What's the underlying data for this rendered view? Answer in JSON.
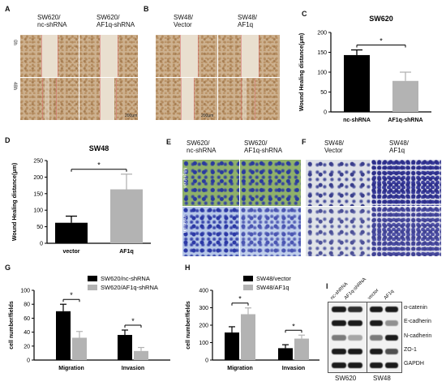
{
  "panels": {
    "A": {
      "label": "A",
      "columns": [
        "SW620/\nnc-shRNA",
        "SW620/\nAF1q-shRNA"
      ],
      "rows": [
        "0h",
        "48h"
      ],
      "scale": "200μm"
    },
    "B": {
      "label": "B",
      "columns": [
        "SW48/\nVector",
        "SW48/\nAF1q"
      ],
      "scale": "200μm"
    },
    "E": {
      "label": "E",
      "columns": [
        "SW620/\nnc-shRNA",
        "SW620/\nAF1q-shRNA"
      ],
      "rows": [
        "Migration",
        "Invasion"
      ]
    },
    "F": {
      "label": "F",
      "columns": [
        "SW48/\nVector",
        "SW48/\nAF1q"
      ]
    },
    "I": {
      "label": "I",
      "lanes": [
        "nc-shRNA",
        "AF1q-shRNA",
        "vector",
        "AF1q"
      ],
      "proteins": [
        "α-catenin",
        "E-cadherin",
        "N-cadherin",
        "ZO-1",
        "GAPDH"
      ],
      "groups": [
        "SW620",
        "SW48"
      ]
    }
  },
  "chart_data": [
    {
      "panel": "C",
      "type": "bar",
      "title": "SW620",
      "ylabel": "Wound Healing distance(μm)",
      "categories": [
        "nc-shRNA",
        "AF1q-shRNA"
      ],
      "values": [
        143,
        78
      ],
      "errors": [
        13,
        22
      ],
      "colors": [
        "#000000",
        "#b3b3b3"
      ],
      "ylim": [
        0,
        200
      ],
      "yticks": [
        0,
        50,
        100,
        150,
        200
      ],
      "significance": "*"
    },
    {
      "panel": "D",
      "type": "bar",
      "title": "SW48",
      "ylabel": "Wound Healing distance(μm)",
      "categories": [
        "vector",
        "AF1q"
      ],
      "values": [
        62,
        163
      ],
      "errors": [
        20,
        46
      ],
      "colors": [
        "#000000",
        "#b3b3b3"
      ],
      "ylim": [
        0,
        250
      ],
      "yticks": [
        0,
        50,
        100,
        150,
        200,
        250
      ],
      "significance": "*"
    },
    {
      "panel": "G",
      "type": "bar",
      "ylabel": "cell number/fields",
      "categories": [
        "Migration",
        "Invasion"
      ],
      "series": [
        {
          "name": "SW620/nc-shRNA",
          "values": [
            70,
            36
          ],
          "errors": [
            10,
            7
          ],
          "color": "#000000"
        },
        {
          "name": "SW620/AF1q-shRNA",
          "values": [
            32,
            13
          ],
          "errors": [
            9,
            5
          ],
          "color": "#b3b3b3"
        }
      ],
      "ylim": [
        0,
        100
      ],
      "yticks": [
        0,
        20,
        40,
        60,
        80,
        100
      ],
      "significance": [
        "*",
        "*"
      ],
      "legend": "top-right"
    },
    {
      "panel": "H",
      "type": "bar",
      "ylabel": "cell number/fields",
      "categories": [
        "Migration",
        "Invasion"
      ],
      "series": [
        {
          "name": "SW48/vector",
          "values": [
            158,
            68
          ],
          "errors": [
            33,
            20
          ],
          "color": "#000000"
        },
        {
          "name": "SW48/AF1q",
          "values": [
            263,
            123
          ],
          "errors": [
            36,
            20
          ],
          "color": "#b3b3b3"
        }
      ],
      "ylim": [
        0,
        400
      ],
      "yticks": [
        0,
        100,
        200,
        300,
        400
      ],
      "significance": [
        "*",
        "*"
      ],
      "legend": "top-right"
    }
  ]
}
